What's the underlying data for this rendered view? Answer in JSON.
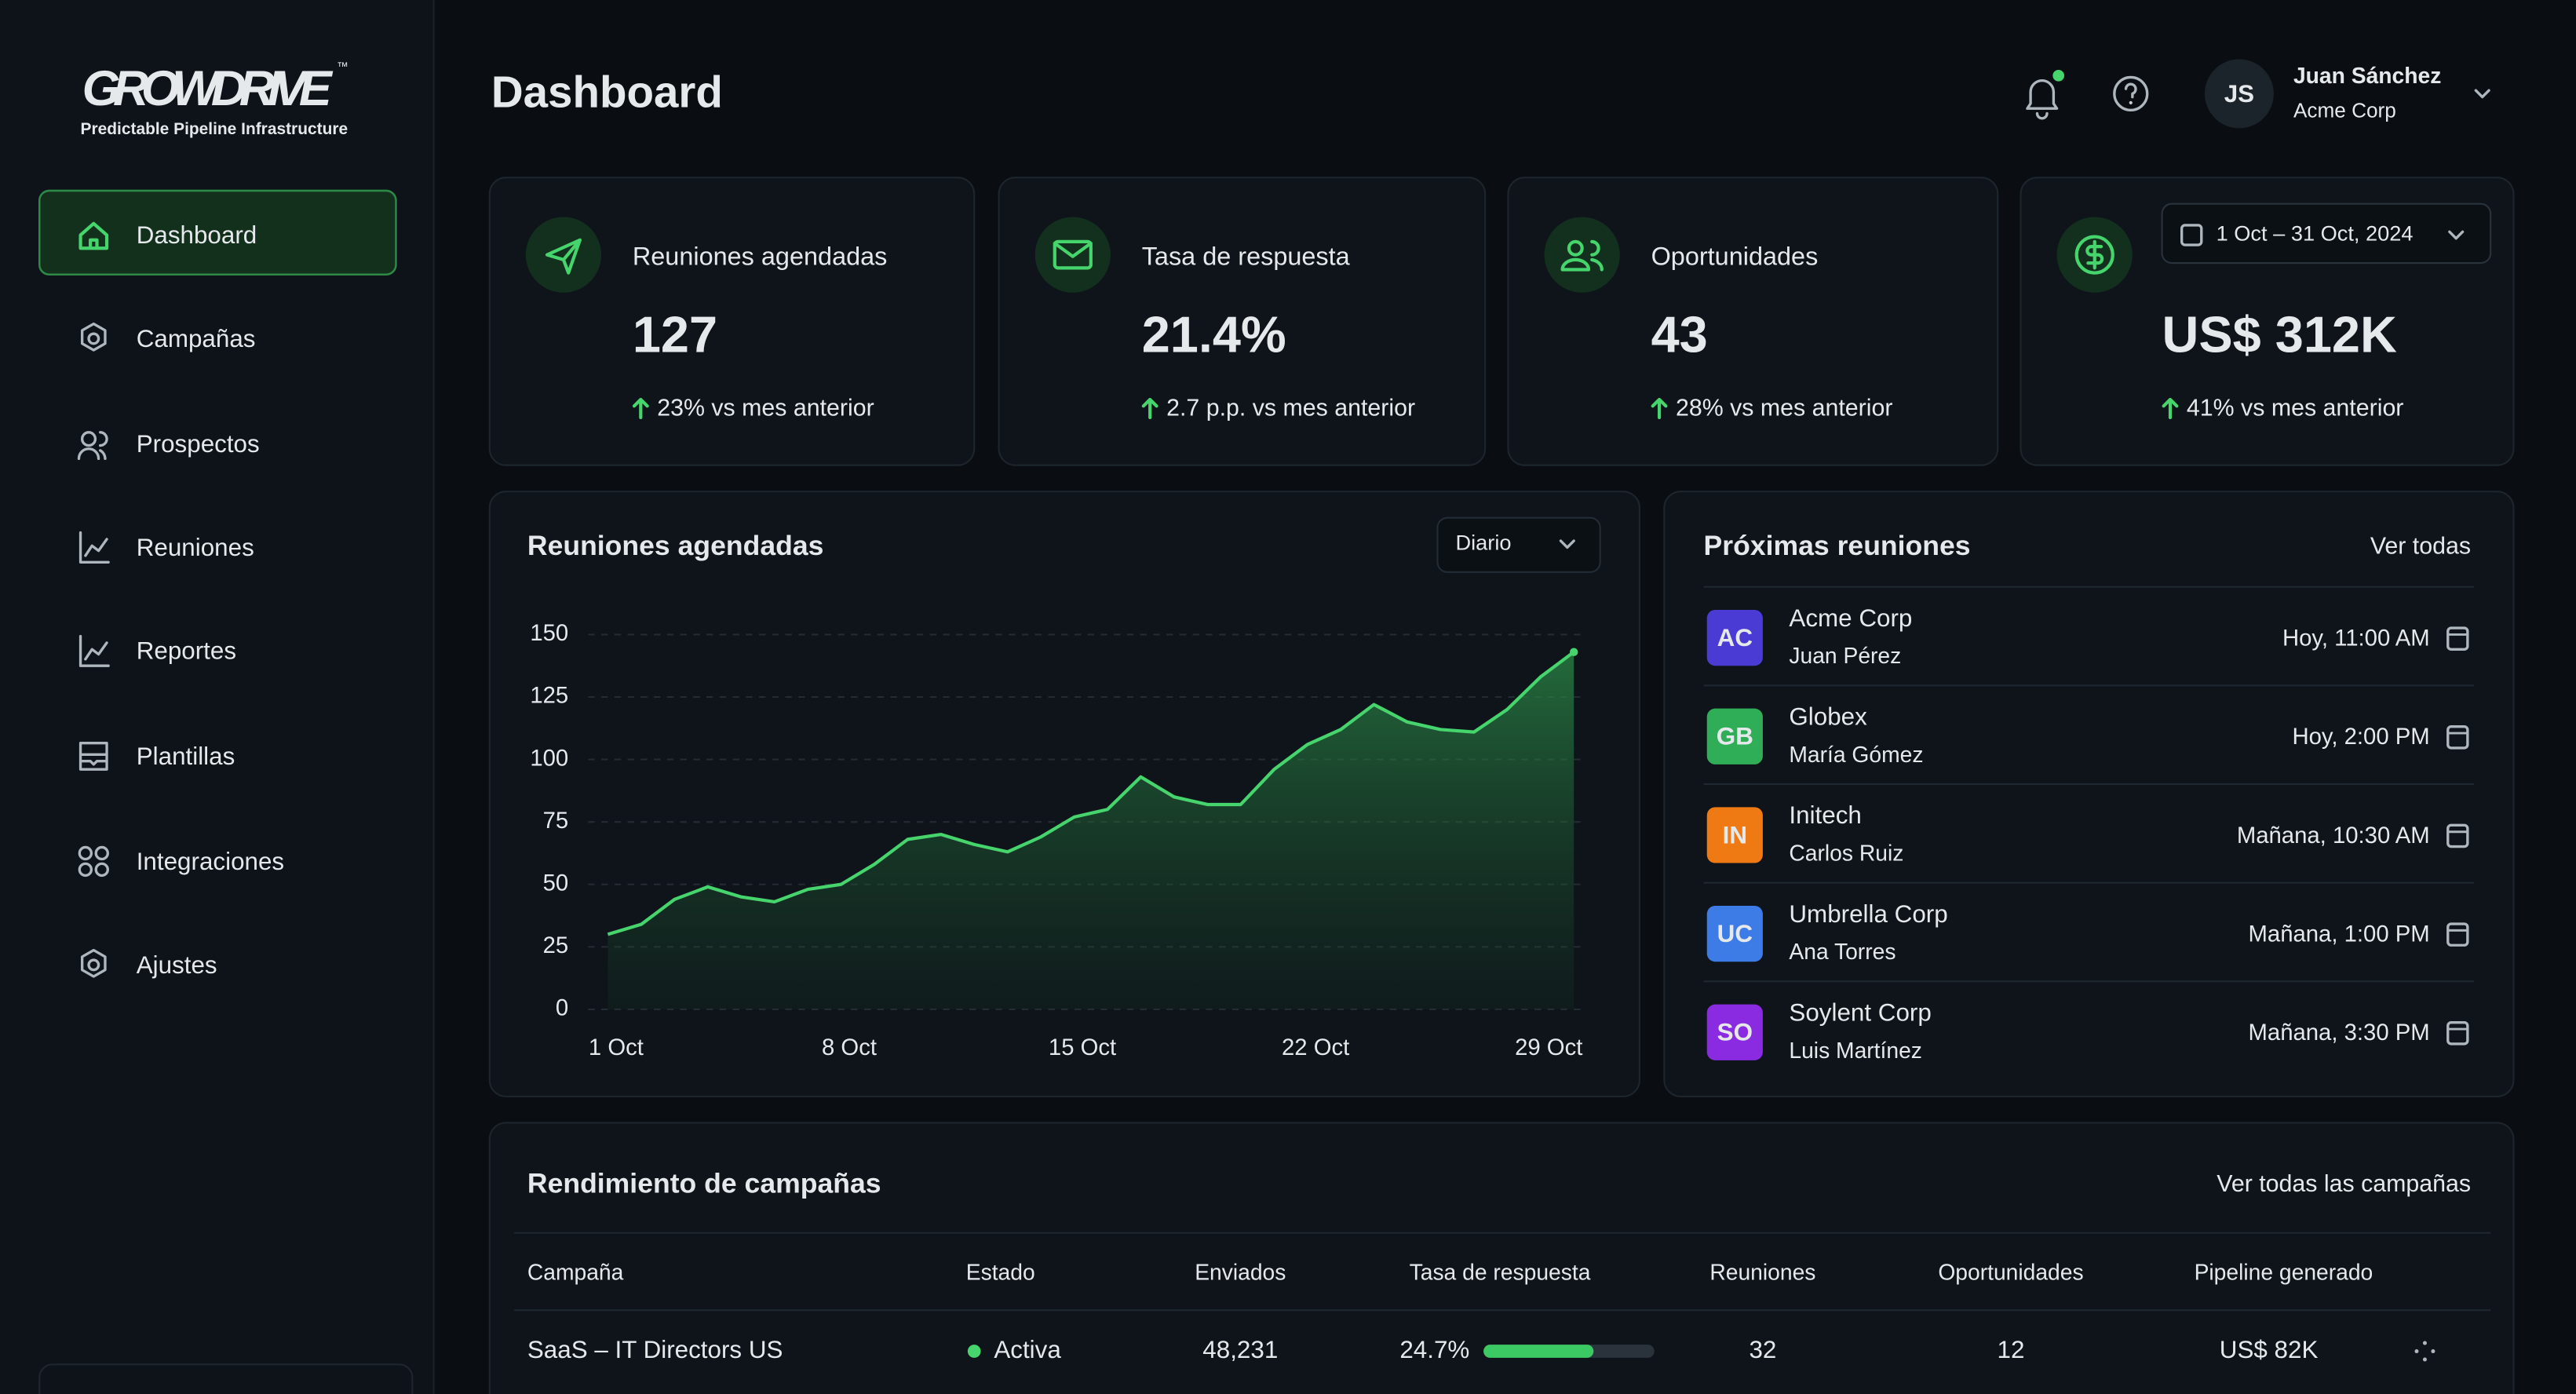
{
  "brand": {
    "name": "GROWDRIVE",
    "tm": "™",
    "tagline": "Predictable Pipeline Infrastructure"
  },
  "nav": [
    "Dashboard",
    "Campañas",
    "Prospectos",
    "Reuniones",
    "Reportes",
    "Plantillas",
    "Integraciones",
    "Ajustes"
  ],
  "header": {
    "title": "Dashboard",
    "user": {
      "initials": "JS",
      "name": "Juan Sánchez",
      "company": "Acme Corp"
    }
  },
  "kpis": [
    {
      "label": "Reuniones agendadas",
      "value": "127",
      "change": "23% vs mes anterior"
    },
    {
      "label": "Tasa de respuesta",
      "value": "21.4%",
      "change": "2.7 p.p. vs mes anterior"
    },
    {
      "label": "Oportunidades",
      "value": "43",
      "change": "28% vs mes anterior"
    },
    {
      "value": "US$ 312K",
      "change": "41% vs mes anterior"
    }
  ],
  "date_range": "1 Oct – 31 Oct, 2024",
  "chart_data": {
    "type": "area",
    "title": "Reuniones agendadas",
    "period": "Diario",
    "categories": [
      "1 Oct",
      null,
      null,
      null,
      null,
      null,
      null,
      "8 Oct",
      null,
      null,
      null,
      null,
      null,
      null,
      "15 Oct",
      null,
      null,
      null,
      null,
      null,
      null,
      "22 Oct",
      null,
      null,
      null,
      null,
      null,
      null,
      "29 Oct",
      null
    ],
    "values": [
      30,
      34,
      44,
      49,
      45,
      43,
      48,
      50,
      58,
      68,
      70,
      66,
      63,
      69,
      77,
      80,
      93,
      85,
      82,
      82,
      96,
      106,
      112,
      122,
      115,
      112,
      111,
      120,
      133,
      143
    ],
    "color": "#46d46c",
    "ylim": [
      0,
      150
    ],
    "yticks": [
      0,
      25,
      50,
      75,
      100,
      125,
      150
    ],
    "grid": true
  },
  "meetings": {
    "title": "Próximas reuniones",
    "link": "Ver todas",
    "items": [
      {
        "initials": "AC",
        "company": "Acme Corp",
        "contact": "Juan Pérez",
        "time": "Hoy, 11:00 AM",
        "color": "#4a3bd4"
      },
      {
        "initials": "GB",
        "company": "Globex",
        "contact": "María Gómez",
        "time": "Hoy, 2:00 PM",
        "color": "#2fae57"
      },
      {
        "initials": "IN",
        "company": "Initech",
        "contact": "Carlos Ruiz",
        "time": "Mañana, 10:30 AM",
        "color": "#ef7a14"
      },
      {
        "initials": "UC",
        "company": "Umbrella Corp",
        "contact": "Ana Torres",
        "time": "Mañana, 1:00 PM",
        "color": "#3d7be6"
      },
      {
        "initials": "SO",
        "company": "Soylent Corp",
        "contact": "Luis Martínez",
        "time": "Mañana, 3:30 PM",
        "color": "#8a2be2"
      }
    ]
  },
  "campaigns": {
    "title": "Rendimiento de campañas",
    "link": "Ver todas las campañas",
    "columns": [
      "Campaña",
      "Estado",
      "Enviados",
      "Tasa de respuesta",
      "Reuniones",
      "Oportunidades",
      "Pipeline generado"
    ],
    "rows": [
      [
        "SaaS – IT Directors US",
        "Activa",
        "48,231",
        "24.7%",
        "32",
        "12",
        "US$ 82K"
      ]
    ]
  }
}
